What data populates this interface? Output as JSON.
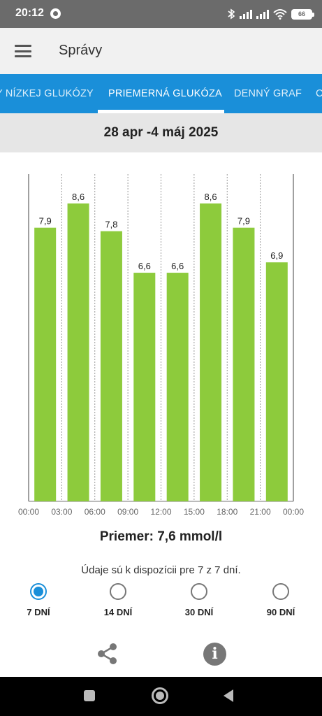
{
  "status_bar": {
    "time": "20:12",
    "battery": "66"
  },
  "app_bar": {
    "title": "Správy"
  },
  "tabs": [
    {
      "label": "Y NÍZKEJ GLUKÓZY",
      "active": false
    },
    {
      "label": "PRIEMERNÁ GLUKÓZA",
      "active": true
    },
    {
      "label": "DENNÝ GRAF",
      "active": false
    },
    {
      "label": "C",
      "active": false
    }
  ],
  "date_range": "28 apr -4 máj 2025",
  "chart_data": {
    "type": "bar",
    "x_ticks": [
      "00:00",
      "03:00",
      "06:00",
      "09:00",
      "12:00",
      "15:00",
      "18:00",
      "21:00",
      "00:00"
    ],
    "values": [
      7.9,
      8.6,
      7.8,
      6.6,
      6.6,
      8.6,
      7.9,
      6.9
    ],
    "value_labels": [
      "7,9",
      "8,6",
      "7,8",
      "6,6",
      "6,6",
      "8,6",
      "7,9",
      "6,9"
    ],
    "ylim": [
      0,
      10
    ],
    "bar_color": "#8dcb3c",
    "grid": "dashed vertical"
  },
  "average_text": "Priemer: 7,6 mmol/l",
  "availability_text": "Údaje sú k dispozícii pre 7 z 7 dní.",
  "ranges": [
    {
      "label": "7 DNÍ",
      "selected": true
    },
    {
      "label": "14 DNÍ",
      "selected": false
    },
    {
      "label": "30 DNÍ",
      "selected": false
    },
    {
      "label": "90 DNÍ",
      "selected": false
    }
  ],
  "colors": {
    "accent": "#1a8fd9",
    "bar": "#8dcb3c",
    "status_bar": "#6b6b6b"
  },
  "icons": [
    "menu-icon",
    "share-icon",
    "info-icon",
    "bluetooth-icon",
    "signal-icon",
    "wifi-icon",
    "battery-icon"
  ]
}
